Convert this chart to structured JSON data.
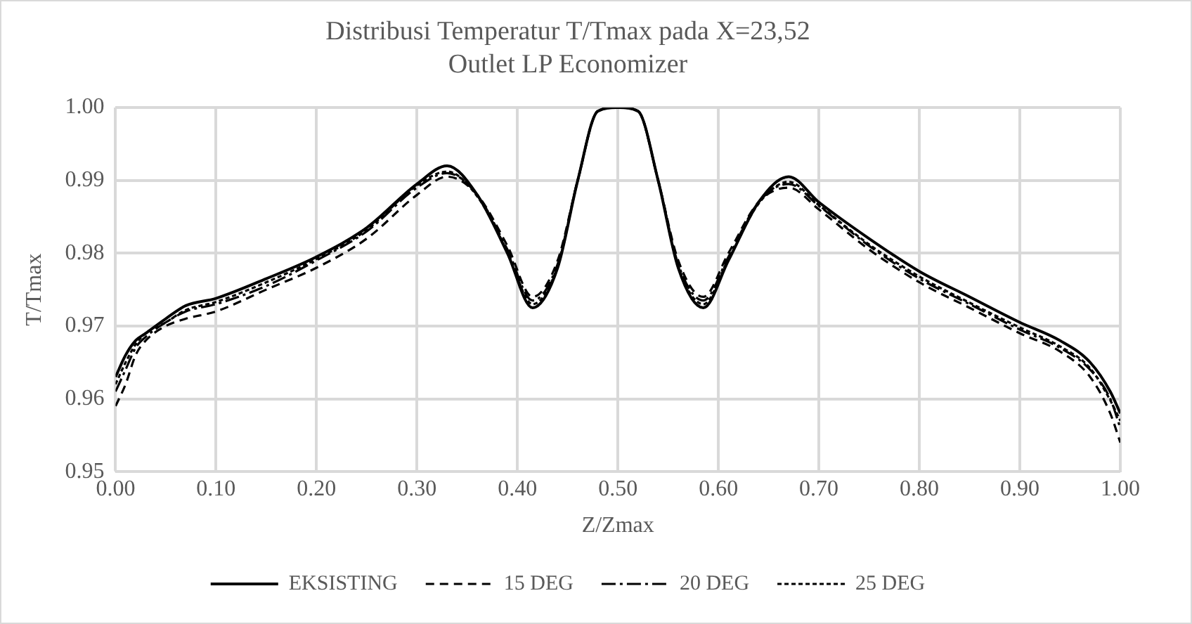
{
  "chart_data": {
    "type": "line",
    "title": "Distribusi Temperatur T/Tmax pada X=23,52",
    "subtitle": "Outlet LP Economizer",
    "xlabel": "Z/Zmax",
    "ylabel": "T/Tmax",
    "x": [
      0,
      0.01,
      0.02,
      0.03,
      0.05,
      0.07,
      0.1,
      0.15,
      0.2,
      0.25,
      0.3,
      0.33,
      0.36,
      0.39,
      0.415,
      0.44,
      0.46,
      0.48,
      0.5,
      0.52,
      0.54,
      0.56,
      0.585,
      0.61,
      0.64,
      0.67,
      0.7,
      0.75,
      0.8,
      0.85,
      0.9,
      0.94,
      0.97,
      0.99,
      1
    ],
    "series": [
      {
        "name": "EKSISTING",
        "color": "#000000",
        "line_style": "solid",
        "values": [
          0.963,
          0.966,
          0.968,
          0.969,
          0.971,
          0.9728,
          0.9738,
          0.9765,
          0.9795,
          0.9835,
          0.9895,
          0.992,
          0.988,
          0.98,
          0.9725,
          0.978,
          0.99,
          0.9995,
          1,
          0.9995,
          0.99,
          0.978,
          0.9725,
          0.979,
          0.987,
          0.9905,
          0.987,
          0.982,
          0.9775,
          0.974,
          0.9705,
          0.968,
          0.965,
          0.961,
          0.958
        ]
      },
      {
        "name": "15 DEG",
        "color": "#000000",
        "line_style": "dashed",
        "values": [
          0.959,
          0.962,
          0.966,
          0.968,
          0.97,
          0.971,
          0.972,
          0.975,
          0.978,
          0.982,
          0.988,
          0.9905,
          0.988,
          0.981,
          0.974,
          0.979,
          0.99,
          0.9995,
          1,
          0.9995,
          0.99,
          0.979,
          0.974,
          0.98,
          0.987,
          0.989,
          0.986,
          0.9805,
          0.976,
          0.9725,
          0.969,
          0.9665,
          0.963,
          0.958,
          0.954
        ]
      },
      {
        "name": "20 DEG",
        "color": "#000000",
        "line_style": "dashdot",
        "values": [
          0.961,
          0.964,
          0.967,
          0.9685,
          0.9705,
          0.972,
          0.973,
          0.9755,
          0.979,
          0.983,
          0.989,
          0.991,
          0.988,
          0.9805,
          0.9735,
          0.9785,
          0.99,
          0.9995,
          1,
          0.9995,
          0.99,
          0.9785,
          0.9735,
          0.9795,
          0.987,
          0.9895,
          0.9865,
          0.981,
          0.9765,
          0.973,
          0.9695,
          0.967,
          0.964,
          0.96,
          0.956
        ]
      },
      {
        "name": "25 DEG",
        "color": "#000000",
        "line_style": "dotted",
        "values": [
          0.962,
          0.965,
          0.9675,
          0.969,
          0.9705,
          0.9722,
          0.9733,
          0.976,
          0.9792,
          0.9832,
          0.9893,
          0.9912,
          0.9878,
          0.9802,
          0.973,
          0.9782,
          0.99,
          0.9995,
          1,
          0.9995,
          0.99,
          0.9782,
          0.973,
          0.9792,
          0.9868,
          0.9898,
          0.9866,
          0.9812,
          0.9768,
          0.9732,
          0.9698,
          0.9672,
          0.9642,
          0.9598,
          0.957
        ]
      }
    ],
    "xlim": [
      0,
      1
    ],
    "xticks": [
      {
        "value": 0,
        "label": "0.00"
      },
      {
        "value": 0.1,
        "label": "0.10"
      },
      {
        "value": 0.2,
        "label": "0.20"
      },
      {
        "value": 0.3,
        "label": "0.30"
      },
      {
        "value": 0.4,
        "label": "0.40"
      },
      {
        "value": 0.5,
        "label": "0.50"
      },
      {
        "value": 0.6,
        "label": "0.60"
      },
      {
        "value": 0.7,
        "label": "0.70"
      },
      {
        "value": 0.8,
        "label": "0.80"
      },
      {
        "value": 0.9,
        "label": "0.90"
      },
      {
        "value": 1,
        "label": "1.00"
      }
    ],
    "ylim": [
      0.95,
      1
    ],
    "yticks": [
      {
        "value": 0.95,
        "label": "0.95"
      },
      {
        "value": 0.96,
        "label": "0.96"
      },
      {
        "value": 0.97,
        "label": "0.97"
      },
      {
        "value": 0.98,
        "label": "0.98"
      },
      {
        "value": 0.99,
        "label": "0.99"
      },
      {
        "value": 1,
        "label": "1.00"
      }
    ],
    "grid": true,
    "legend": "bottom",
    "marker": "none"
  }
}
